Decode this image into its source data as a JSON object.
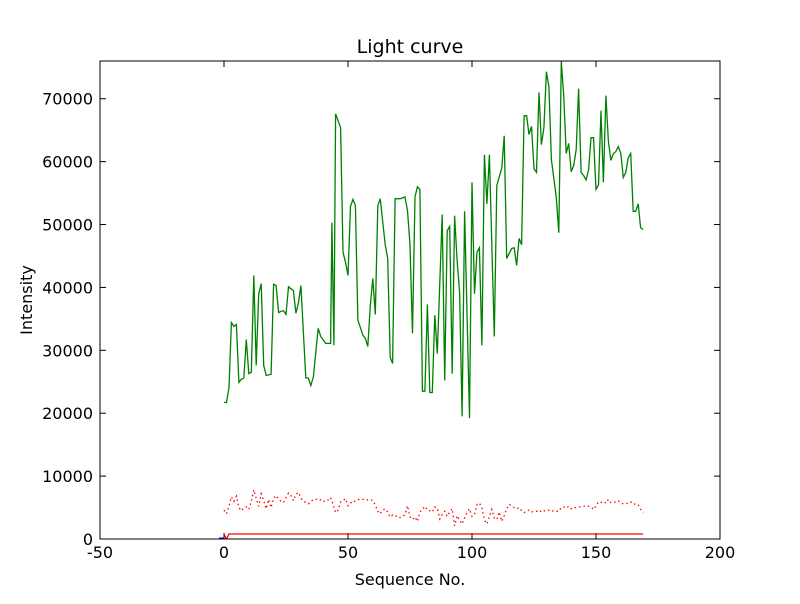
{
  "chart_data": {
    "type": "line",
    "title": "Light curve",
    "xlabel": "Sequence No.",
    "ylabel": "Intensity",
    "xlim": [
      -50,
      200
    ],
    "ylim": [
      0,
      76000
    ],
    "xticks": [
      -50,
      0,
      50,
      100,
      150,
      200
    ],
    "yticks": [
      0,
      10000,
      20000,
      30000,
      40000,
      50000,
      60000,
      70000
    ],
    "grid": false,
    "series": [
      {
        "name": "green-curve",
        "color": "#008000",
        "style": "solid",
        "points": [
          [
            0,
            21700
          ],
          [
            1,
            21700
          ],
          [
            2,
            24100
          ],
          [
            3,
            34400
          ],
          [
            4,
            33800
          ],
          [
            5,
            34100
          ],
          [
            6,
            24900
          ],
          [
            7,
            25400
          ],
          [
            8,
            25600
          ],
          [
            9,
            31700
          ],
          [
            10,
            26300
          ],
          [
            11,
            26500
          ],
          [
            12,
            41900
          ],
          [
            13,
            27600
          ],
          [
            14,
            39000
          ],
          [
            15,
            40600
          ],
          [
            16,
            27600
          ],
          [
            17,
            26000
          ],
          [
            19,
            26200
          ],
          [
            20,
            40500
          ],
          [
            21,
            40300
          ],
          [
            22,
            36000
          ],
          [
            23,
            36200
          ],
          [
            24,
            36300
          ],
          [
            25,
            35700
          ],
          [
            26,
            40100
          ],
          [
            28,
            39500
          ],
          [
            29,
            35900
          ],
          [
            30,
            37500
          ],
          [
            31,
            40300
          ],
          [
            33,
            25600
          ],
          [
            34,
            25600
          ],
          [
            35,
            24400
          ],
          [
            36,
            25700
          ],
          [
            38,
            33500
          ],
          [
            39,
            32200
          ],
          [
            41,
            31100
          ],
          [
            43,
            31100
          ],
          [
            43.5,
            50300
          ],
          [
            44.3,
            30800
          ],
          [
            45,
            67600
          ],
          [
            47,
            65400
          ],
          [
            48,
            45600
          ],
          [
            49,
            44000
          ],
          [
            50,
            41900
          ],
          [
            51,
            52900
          ],
          [
            52,
            54000
          ],
          [
            53,
            53000
          ],
          [
            54,
            34800
          ],
          [
            56,
            32400
          ],
          [
            57,
            31900
          ],
          [
            58,
            30600
          ],
          [
            59,
            37100
          ],
          [
            60,
            41400
          ],
          [
            61,
            35700
          ],
          [
            62,
            53000
          ],
          [
            63,
            54100
          ],
          [
            65,
            46800
          ],
          [
            66,
            44600
          ],
          [
            67,
            28900
          ],
          [
            68,
            27900
          ],
          [
            69,
            54100
          ],
          [
            71,
            54100
          ],
          [
            73,
            54400
          ],
          [
            74,
            52200
          ],
          [
            75,
            46800
          ],
          [
            76,
            32700
          ],
          [
            77,
            54400
          ],
          [
            78,
            56000
          ],
          [
            79,
            55600
          ],
          [
            80,
            23500
          ],
          [
            81,
            23500
          ],
          [
            82,
            37300
          ],
          [
            83,
            23300
          ],
          [
            84,
            23300
          ],
          [
            85,
            35600
          ],
          [
            86,
            29500
          ],
          [
            88,
            51600
          ],
          [
            89,
            25200
          ],
          [
            90,
            49000
          ],
          [
            91,
            49700
          ],
          [
            92,
            26300
          ],
          [
            93,
            51400
          ],
          [
            94,
            44300
          ],
          [
            95,
            39200
          ],
          [
            96,
            19500
          ],
          [
            97,
            52100
          ],
          [
            99,
            19200
          ],
          [
            100,
            56700
          ],
          [
            101,
            39000
          ],
          [
            102,
            45600
          ],
          [
            103,
            46300
          ],
          [
            104,
            30800
          ],
          [
            105,
            61100
          ],
          [
            106,
            53300
          ],
          [
            107,
            61100
          ],
          [
            109,
            32200
          ],
          [
            110,
            56200
          ],
          [
            112,
            59000
          ],
          [
            113,
            64100
          ],
          [
            114,
            44600
          ],
          [
            116,
            46200
          ],
          [
            117,
            46300
          ],
          [
            118,
            43500
          ],
          [
            119,
            47800
          ],
          [
            120,
            46800
          ],
          [
            121,
            67300
          ],
          [
            122,
            67300
          ],
          [
            123,
            64300
          ],
          [
            124,
            65600
          ],
          [
            125,
            58900
          ],
          [
            126,
            58300
          ],
          [
            127,
            71000
          ],
          [
            128,
            62700
          ],
          [
            129,
            65400
          ],
          [
            130,
            74300
          ],
          [
            131,
            71900
          ],
          [
            132,
            60300
          ],
          [
            134,
            54300
          ],
          [
            135,
            48700
          ],
          [
            136,
            75900
          ],
          [
            137,
            70300
          ],
          [
            138,
            61300
          ],
          [
            139,
            62900
          ],
          [
            140,
            58400
          ],
          [
            141,
            59400
          ],
          [
            142,
            61900
          ],
          [
            143,
            71600
          ],
          [
            144,
            58300
          ],
          [
            145,
            57800
          ],
          [
            146,
            57100
          ],
          [
            147,
            58700
          ],
          [
            148,
            63800
          ],
          [
            149,
            63800
          ],
          [
            150,
            55600
          ],
          [
            151,
            56300
          ],
          [
            152,
            68100
          ],
          [
            153,
            56700
          ],
          [
            154,
            70500
          ],
          [
            155,
            63200
          ],
          [
            156,
            60200
          ],
          [
            157,
            61300
          ],
          [
            158,
            61600
          ],
          [
            159,
            62400
          ],
          [
            160,
            61300
          ],
          [
            161,
            57500
          ],
          [
            162,
            58300
          ],
          [
            163,
            60600
          ],
          [
            164,
            61300
          ],
          [
            165,
            52100
          ],
          [
            166,
            52100
          ],
          [
            167,
            53300
          ],
          [
            168,
            49500
          ],
          [
            169,
            49200
          ]
        ]
      },
      {
        "name": "red-dotted-curve",
        "color": "#ff0000",
        "style": "dotted",
        "x_start": 0,
        "values": [
          4600,
          4000,
          5200,
          6700,
          6000,
          6800,
          5000,
          4500,
          4900,
          5100,
          4700,
          6000,
          7800,
          6500,
          5200,
          7200,
          6100,
          4800,
          6300,
          5000,
          6500,
          6900,
          6300,
          6000,
          5800,
          6600,
          7300,
          6900,
          6100,
          7100,
          7400,
          6500,
          6000,
          5800,
          5600,
          5900,
          6300,
          6300,
          6400,
          6200,
          5900,
          6200,
          6200,
          6600,
          5500,
          4200,
          4600,
          5900,
          6100,
          6400,
          5300,
          5800,
          5700,
          6100,
          6300,
          6200,
          6300,
          6300,
          6200,
          6300,
          6100,
          5400,
          4400,
          4000,
          4600,
          4800,
          4300,
          3500,
          3800,
          3600,
          3700,
          3400,
          3600,
          3900,
          5300,
          3500,
          3100,
          3500,
          2800,
          4300,
          4700,
          5200,
          4600,
          4500,
          4300,
          5100,
          4900,
          3200,
          3900,
          4400,
          3600,
          4300,
          4800,
          2100,
          3700,
          3000,
          2400,
          3300,
          4200,
          4800,
          3600,
          3900,
          5500,
          5700,
          5000,
          3000,
          2400,
          3600,
          4700,
          3300,
          3100,
          4300,
          2800,
          3700,
          4800,
          5500,
          5300,
          5000,
          4800,
          5000,
          4500,
          4200,
          4400,
          4600,
          4300,
          4400,
          4400,
          4600,
          4300,
          4500,
          4400,
          4600,
          4400,
          4500,
          4400,
          4400,
          5000,
          5100,
          4900,
          5200,
          4800,
          5000,
          5000,
          5100,
          5100,
          5200,
          5300,
          5200,
          5100,
          4700,
          5300,
          5900,
          5800,
          6000,
          5700,
          6300,
          5800,
          5800,
          5900,
          6100,
          5700,
          5600,
          5600,
          5700,
          5900,
          5500,
          5600,
          5400,
          4700,
          4200
        ]
      },
      {
        "name": "red-solid-curve",
        "color": "#ff0000",
        "style": "solid",
        "points": [
          [
            0,
            800
          ],
          [
            1,
            0
          ],
          [
            2,
            800
          ],
          [
            169,
            800
          ]
        ]
      },
      {
        "name": "blue-curve",
        "color": "#0000ff",
        "style": "solid",
        "points": [
          [
            -2,
            0
          ],
          [
            0,
            0
          ]
        ]
      }
    ]
  }
}
